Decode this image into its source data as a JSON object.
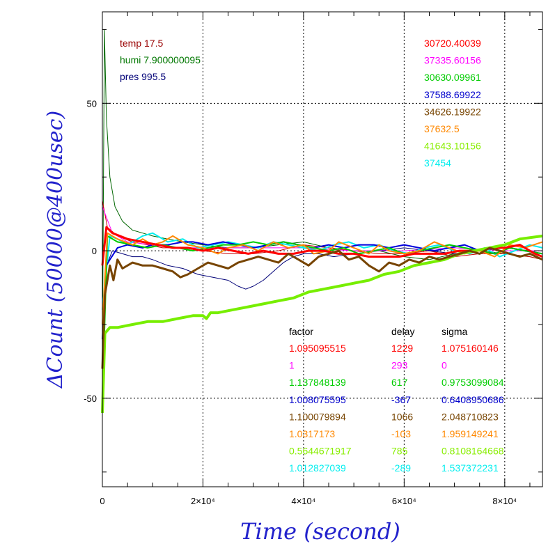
{
  "chart_data": {
    "type": "line",
    "xlabel": "Time (second)",
    "ylabel": "ΔCount (50000@400usec)",
    "xlim": [
      0,
      87500
    ],
    "ylim": [
      -80,
      81
    ],
    "grid": true,
    "grid_style": "dotted",
    "x_ticks": [
      {
        "value": 0,
        "label": "0"
      },
      {
        "value": 20000,
        "label": "2×10⁴"
      },
      {
        "value": 40000,
        "label": "4×10⁴"
      },
      {
        "value": 60000,
        "label": "6×10⁴"
      },
      {
        "value": 80000,
        "label": "8×10⁴"
      }
    ],
    "y_ticks": [
      {
        "value": 50,
        "label": "50"
      },
      {
        "value": 0,
        "label": "0"
      },
      {
        "value": -50,
        "label": "-50"
      }
    ],
    "env": [
      {
        "text": "temp 17.5",
        "color": "#990000"
      },
      {
        "text": "humi 7.900000095",
        "color": "#007700"
      },
      {
        "text": "pres 995.5",
        "color": "#000077"
      }
    ],
    "means": [
      {
        "text": "30720.40039",
        "color": "#ff0000"
      },
      {
        "text": "37335.60156",
        "color": "#ff00ff"
      },
      {
        "text": "30630.09961",
        "color": "#00cc00"
      },
      {
        "text": "37588.69922",
        "color": "#0000cc"
      },
      {
        "text": "34626.19922",
        "color": "#774400"
      },
      {
        "text": "37632.5",
        "color": "#ff8800"
      },
      {
        "text": "41643.10156",
        "color": "#88ee00"
      },
      {
        "text": "37454",
        "color": "#00eeee"
      }
    ],
    "table": {
      "headers": [
        "factor",
        "delay",
        "sigma"
      ],
      "rows": [
        {
          "factor": "1.095095515",
          "delay": "1229",
          "sigma": "1.075160146",
          "color": "#ff0000"
        },
        {
          "factor": "1",
          "delay": "293",
          "sigma": "0",
          "color": "#ff00ff"
        },
        {
          "factor": "1.137848139",
          "delay": "617",
          "sigma": "0.9753099084",
          "color": "#00cc00"
        },
        {
          "factor": "1.008075595",
          "delay": "-367",
          "sigma": "0.6408950686",
          "color": "#0000cc"
        },
        {
          "factor": "1.100079894",
          "delay": "1066",
          "sigma": "2.048710823",
          "color": "#774400"
        },
        {
          "factor": "1.0317173",
          "delay": "-103",
          "sigma": "1.959149241",
          "color": "#ff8800"
        },
        {
          "factor": "0.5644671917",
          "delay": "785",
          "sigma": "0.8108164668",
          "color": "#88ee00"
        },
        {
          "factor": "1.012827039",
          "delay": "-289",
          "sigma": "1.537372231",
          "color": "#00eeee"
        }
      ]
    },
    "series": [
      {
        "color": "#006600",
        "width": 1,
        "x": [
          0,
          400,
          800,
          1500,
          2500,
          4000,
          6000,
          8000,
          10000,
          13000,
          16000,
          20000,
          25000,
          30000,
          35000,
          40000,
          45000,
          50000,
          55000,
          60000,
          65000,
          70000,
          75000,
          80000,
          85000,
          87500
        ],
        "y": [
          -40,
          75,
          45,
          25,
          15,
          10,
          7,
          6,
          5,
          4,
          3,
          2,
          1,
          1,
          2,
          3,
          1,
          0,
          0,
          -2,
          -3,
          -1,
          0,
          -1,
          -2,
          -3
        ]
      },
      {
        "color": "#cc0000",
        "width": 1,
        "x": [
          0,
          1000,
          3000,
          6000,
          9000,
          12000,
          16000,
          20000,
          25000,
          30000,
          35000,
          40000,
          45000,
          50000,
          55000,
          60000,
          65000,
          70000,
          75000,
          80000,
          85000,
          87500
        ],
        "y": [
          17,
          8,
          5,
          3,
          2,
          1,
          1,
          0,
          -1,
          -1,
          0,
          2,
          1,
          0,
          -1,
          -1,
          0,
          -2,
          -1,
          -1,
          -2,
          -3
        ]
      },
      {
        "color": "#000077",
        "width": 1,
        "x": [
          0,
          800,
          2000,
          4000,
          6000,
          8000,
          10000,
          13000,
          16000,
          19000,
          22000,
          25000,
          27000,
          28500,
          30000,
          32000,
          34000,
          36000,
          38000,
          40000,
          43000,
          46000,
          50000,
          55000,
          60000,
          65000,
          70000,
          75000,
          80000,
          85000,
          87500
        ],
        "y": [
          -45,
          -5,
          0,
          -1,
          -2,
          -2,
          -3,
          -5,
          -6,
          -8,
          -9,
          -10,
          -12,
          -13,
          -12,
          -10,
          -7,
          -4,
          -2,
          -1,
          -1,
          -2,
          -1,
          0,
          1,
          0,
          -1,
          0,
          1,
          0,
          -1
        ]
      },
      {
        "color": "#ff00ff",
        "width": 1,
        "x": [
          0,
          2000,
          5000,
          10000,
          15000,
          20000,
          30000,
          40000,
          50000,
          60000,
          70000,
          80000,
          87500
        ],
        "y": [
          15,
          6,
          3,
          2,
          1,
          1,
          1,
          1,
          0,
          0,
          1,
          0,
          0
        ]
      },
      {
        "color": "#00eeee",
        "width": 2,
        "x": [
          0,
          1500,
          3000,
          5000,
          8000,
          10000,
          13000,
          16000,
          19000,
          22000,
          25000,
          28000,
          31000,
          34000,
          37000,
          40000,
          43000,
          46000,
          49000,
          52000,
          55000,
          58000,
          61000,
          64000,
          67000,
          70000,
          73000,
          76000,
          79000,
          82000,
          85000,
          87500
        ],
        "y": [
          -20,
          5,
          4,
          2,
          5,
          6,
          3,
          4,
          1,
          2,
          3,
          2,
          1,
          3,
          2,
          1,
          0,
          2,
          3,
          1,
          2,
          0,
          -1,
          1,
          2,
          0,
          -1,
          1,
          -2,
          0,
          2,
          1
        ]
      },
      {
        "color": "#0000dd",
        "width": 2,
        "x": [
          0,
          800,
          1500,
          3000,
          5000,
          8000,
          10000,
          13000,
          16000,
          18000,
          21000,
          24000,
          27000,
          30000,
          33000,
          36000,
          39000,
          42000,
          45000,
          48000,
          51000,
          54000,
          57000,
          60000,
          63000,
          66000,
          69000,
          72000,
          75000,
          78000,
          81000,
          84000,
          87500
        ],
        "y": [
          -30,
          -5,
          -3,
          1,
          2,
          1,
          2,
          2,
          3,
          3,
          2,
          3,
          2,
          1,
          2,
          3,
          2,
          1,
          2,
          1,
          2,
          2,
          1,
          2,
          1,
          0,
          1,
          2,
          0,
          -1,
          1,
          0,
          -1
        ]
      },
      {
        "color": "#00cc00",
        "width": 2,
        "x": [
          0,
          1000,
          3000,
          6000,
          9000,
          12000,
          15000,
          18000,
          21000,
          24000,
          27000,
          30000,
          33000,
          36000,
          39000,
          42000,
          45000,
          48000,
          51000,
          54000,
          57000,
          60000,
          63000,
          66000,
          69000,
          72000,
          75000,
          78000,
          81000,
          84000,
          87500
        ],
        "y": [
          -50,
          5,
          3,
          2,
          1,
          2,
          1,
          0,
          1,
          2,
          2,
          3,
          2,
          3,
          2,
          1,
          0,
          1,
          -1,
          0,
          1,
          -1,
          0,
          1,
          2,
          1,
          0,
          -1,
          1,
          0,
          -1
        ]
      },
      {
        "color": "#ff8800",
        "width": 2,
        "x": [
          0,
          1000,
          3000,
          6000,
          8000,
          10000,
          12000,
          14000,
          17000,
          20000,
          23000,
          25000,
          28000,
          31000,
          34000,
          37000,
          40000,
          42000,
          45000,
          47000,
          50000,
          53000,
          55000,
          57000,
          60000,
          63000,
          66000,
          69000,
          72000,
          75000,
          78000,
          81000,
          84000,
          87500
        ],
        "y": [
          -25,
          6,
          4,
          2,
          4,
          2,
          3,
          5,
          2,
          1,
          -1,
          1,
          2,
          0,
          3,
          1,
          2,
          -1,
          0,
          3,
          1,
          -1,
          2,
          0,
          -1,
          0,
          3,
          1,
          -1,
          0,
          -2,
          2,
          1,
          3
        ]
      },
      {
        "color": "#ff0000",
        "width": 3,
        "x": [
          0,
          800,
          2000,
          5000,
          8000,
          11000,
          14000,
          17000,
          20000,
          23000,
          26000,
          29000,
          32000,
          35000,
          38000,
          41000,
          44000,
          47000,
          50000,
          53000,
          56000,
          59000,
          62000,
          65000,
          68000,
          71000,
          74000,
          77000,
          80000,
          83000,
          86000,
          87500
        ],
        "y": [
          -5,
          8,
          6,
          4,
          3,
          2,
          1,
          1,
          0,
          1,
          0,
          -1,
          0,
          -1,
          -1,
          0,
          0,
          -1,
          -1,
          -2,
          -2,
          -2,
          -1,
          -1,
          -1,
          0,
          0,
          1,
          1,
          2,
          -1,
          -2
        ]
      },
      {
        "color": "#77ee00",
        "width": 4,
        "x": [
          0,
          500,
          1500,
          3000,
          6000,
          9000,
          12000,
          15000,
          18000,
          20000,
          20700,
          21500,
          23000,
          26000,
          29000,
          32000,
          35000,
          38000,
          41000,
          44000,
          47000,
          50000,
          53000,
          56000,
          59000,
          62000,
          65000,
          68000,
          71000,
          74000,
          77000,
          80000,
          83000,
          87500
        ],
        "y": [
          -55,
          -28,
          -26,
          -26,
          -25,
          -24,
          -24,
          -23,
          -22,
          -22,
          -23,
          -21,
          -21,
          -20,
          -19,
          -18,
          -17,
          -16,
          -14,
          -13,
          -12,
          -11,
          -10,
          -8,
          -7,
          -5,
          -4,
          -3,
          -1,
          0,
          1,
          2,
          4,
          5
        ]
      },
      {
        "color": "#774400",
        "width": 3,
        "x": [
          0,
          500,
          1000,
          1500,
          2200,
          3000,
          4000,
          6000,
          8000,
          10000,
          12000,
          14000,
          15500,
          17000,
          19000,
          21000,
          23000,
          25000,
          27000,
          29000,
          31000,
          33000,
          35000,
          37000,
          39000,
          41000,
          43000,
          45000,
          47000,
          49000,
          51000,
          53000,
          55000,
          57000,
          59000,
          61000,
          63000,
          65000,
          67000,
          69000,
          71000,
          73000,
          75000,
          77000,
          79000,
          81000,
          83000,
          85000,
          87500
        ],
        "y": [
          -40,
          -15,
          -10,
          -5,
          -10,
          -3,
          -6,
          -4,
          -5,
          -5,
          -6,
          -7,
          -9,
          -8,
          -6,
          -4,
          -5,
          -6,
          -4,
          -3,
          -2,
          -3,
          -4,
          -1,
          -3,
          -5,
          -2,
          -1,
          0,
          -3,
          -2,
          -5,
          -7,
          -4,
          -5,
          -3,
          -4,
          -2,
          -3,
          -2,
          -1,
          0,
          -1,
          1,
          0,
          -1,
          -2,
          -1,
          -3
        ]
      }
    ]
  }
}
